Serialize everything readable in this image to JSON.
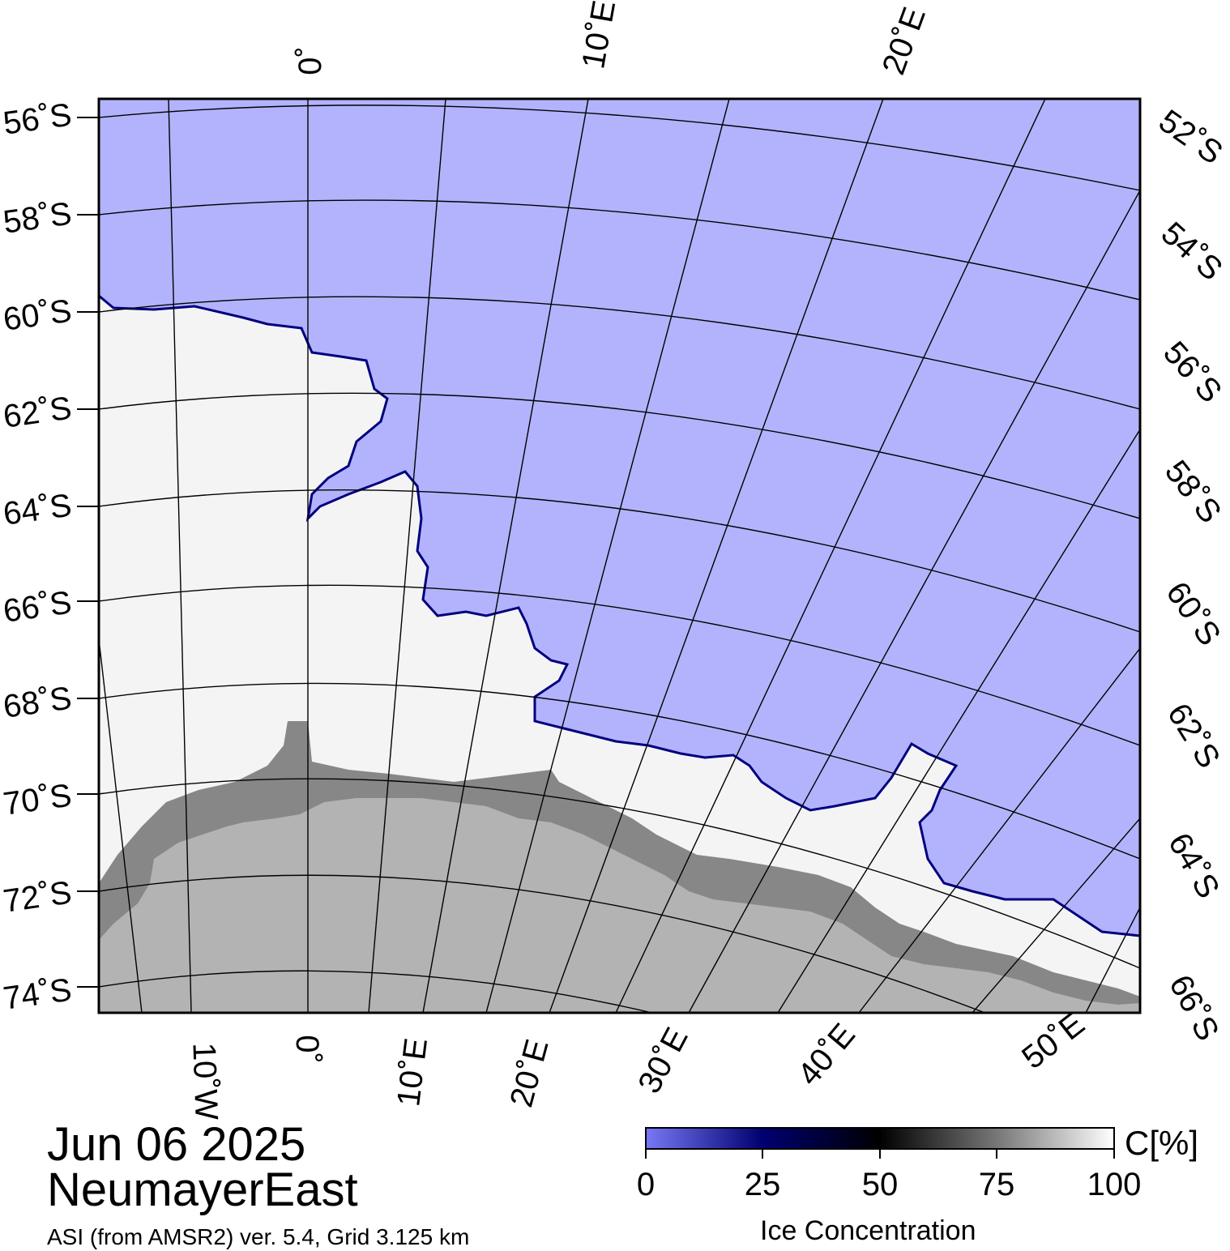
{
  "map": {
    "date": "Jun 06 2025",
    "region": "NeumayerEast",
    "product": "ASI (from AMSR2) ver. 5.4,  Grid 3.125 km",
    "colors": {
      "open_water": "#b3b3fd",
      "sea_ice": "#f4f4f4",
      "ice_shelf": "#878787",
      "land": "#b3b3b3",
      "grid": "#000000"
    },
    "top_lon_labels": [
      "0˚",
      "10˚E",
      "20˚E"
    ],
    "bottom_lon_labels": [
      "10˚W",
      "0˚",
      "10˚E",
      "20˚E",
      "30˚E",
      "40˚E",
      "50˚E"
    ],
    "left_lat_labels": [
      "56˚S",
      "58˚S",
      "60˚S",
      "62˚S",
      "64˚S",
      "66˚S",
      "68˚S",
      "70˚S",
      "72˚S",
      "74˚S"
    ],
    "right_lat_labels": [
      "52˚S",
      "54˚S",
      "56˚S",
      "58˚S",
      "60˚S",
      "62˚S",
      "64˚S",
      "66˚S"
    ]
  },
  "colorbar": {
    "title": "Ice Concentration",
    "unit": "C[%]",
    "ticks": [
      "0",
      "25",
      "50",
      "75",
      "100"
    ],
    "stops": [
      "#7878f5",
      "#000070",
      "#000000",
      "#777777",
      "#ffffff"
    ]
  }
}
